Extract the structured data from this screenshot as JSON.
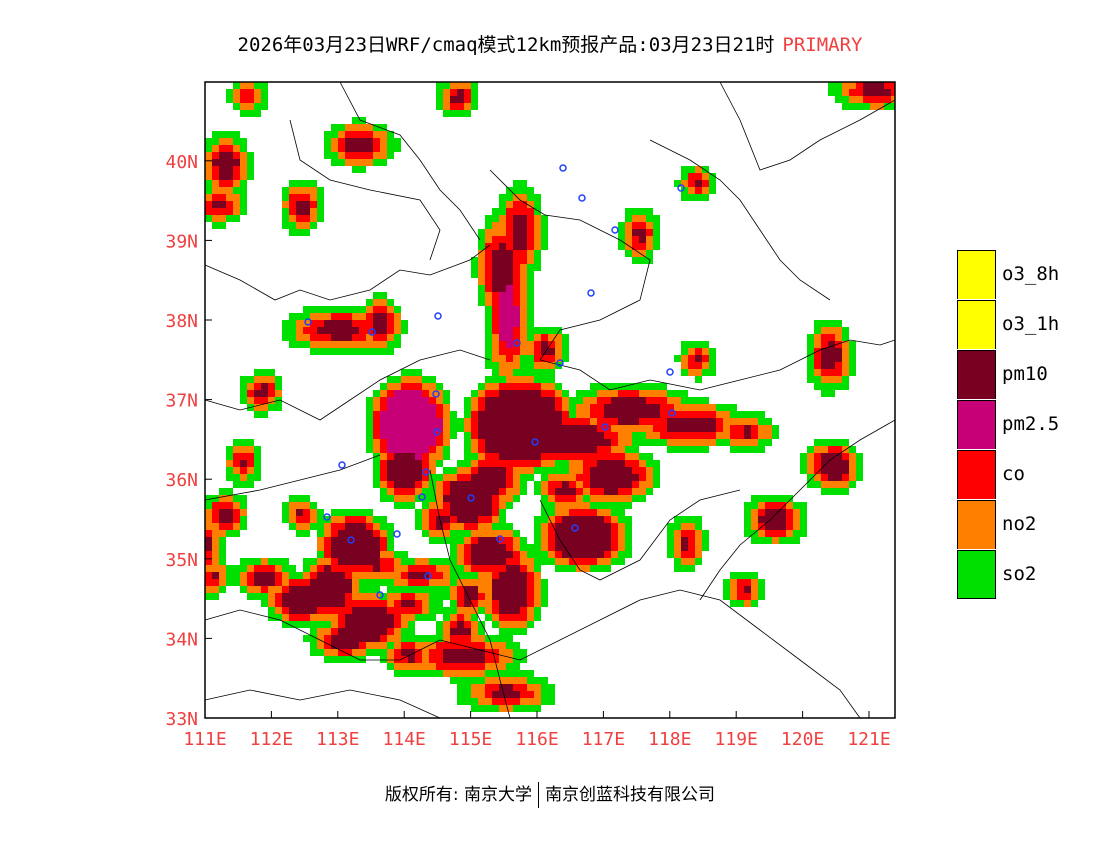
{
  "title": {
    "main": "2026年03月23日WRF/cmaq模式12km预报产品:03月23日21时",
    "tag": "PRIMARY"
  },
  "axes": {
    "lat_labels": [
      "33N",
      "34N",
      "35N",
      "36N",
      "37N",
      "38N",
      "39N",
      "40N"
    ],
    "lon_labels": [
      "111E",
      "112E",
      "113E",
      "114E",
      "115E",
      "116E",
      "117E",
      "118E",
      "119E",
      "120E",
      "121E"
    ],
    "lat_values": [
      33,
      34,
      35,
      36,
      37,
      38,
      39,
      40
    ],
    "lon_values": [
      111,
      112,
      113,
      114,
      115,
      116,
      117,
      118,
      119,
      120,
      121
    ],
    "label_color": "#f04040"
  },
  "legend": [
    {
      "label": "o3_8h",
      "color": "#ffff00"
    },
    {
      "label": "o3_1h",
      "color": "#ffff00"
    },
    {
      "label": "pm10",
      "color": "#780020"
    },
    {
      "label": "pm2.5",
      "color": "#c80078"
    },
    {
      "label": "co",
      "color": "#ff0000"
    },
    {
      "label": "no2",
      "color": "#ff8000"
    },
    {
      "label": "so2",
      "color": "#00e000"
    }
  ],
  "footer": {
    "copyright": "版权所有: 南京大学",
    "company": "南京创蓝科技有限公司"
  }
}
